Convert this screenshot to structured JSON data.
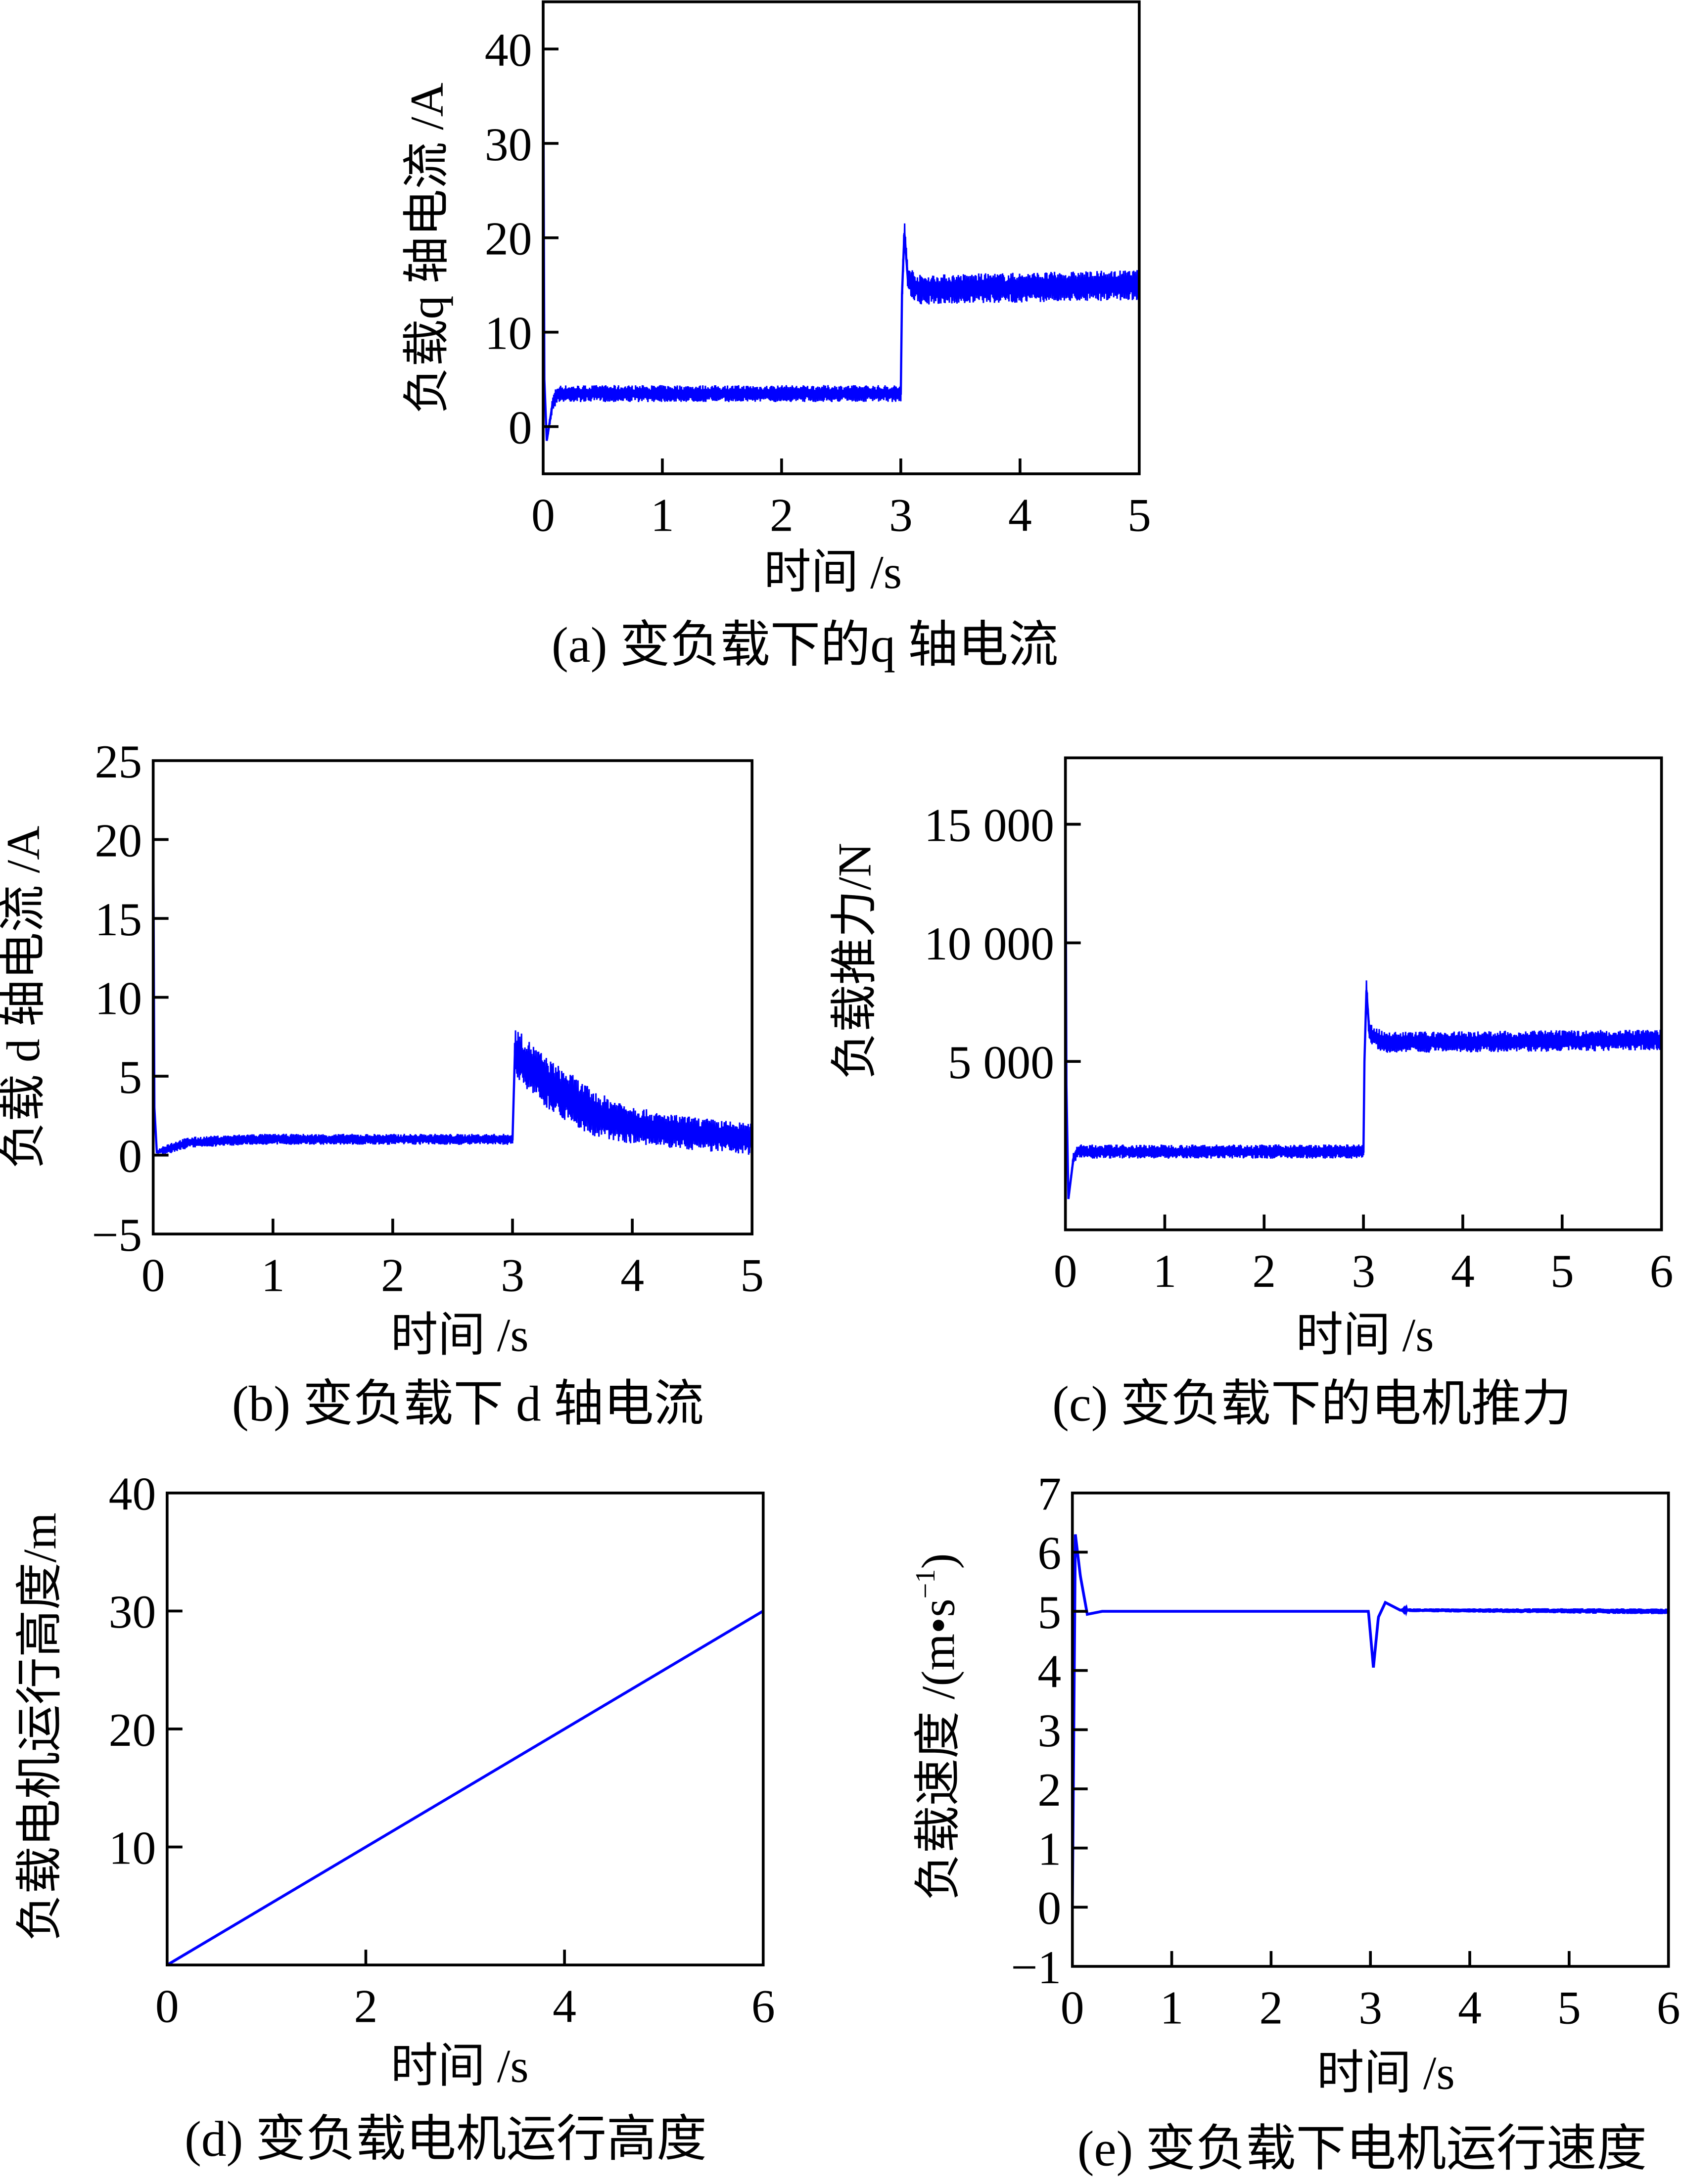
{
  "colors": {
    "series": "#0000ff",
    "axis": "#000000"
  },
  "chart_data": [
    {
      "type": "line",
      "id": "a",
      "caption": "(a) 变负载下的q 轴电流",
      "xlabel": "时间 /s",
      "ylabel": "负载q 轴电流 /A",
      "xlim": [
        0,
        5
      ],
      "ylim": [
        -5,
        45
      ],
      "xticks": [
        0,
        1,
        2,
        3,
        4,
        5
      ],
      "xtick_labels": [
        "0",
        "1",
        "2",
        "3",
        "4",
        "5"
      ],
      "yticks": [
        0,
        10,
        20,
        30,
        40
      ],
      "ytick_labels": [
        "0",
        "10",
        "20",
        "30",
        "40"
      ],
      "grid": false,
      "series": [
        {
          "name": "q-axis current",
          "points": [
            [
              0,
              43
            ],
            [
              0.01,
              5
            ],
            [
              0.03,
              -1.5
            ],
            [
              0.08,
              2.5
            ],
            [
              0.12,
              3.5
            ],
            [
              2.98,
              3.5
            ],
            [
              3.0,
              3.5
            ],
            [
              3.01,
              14
            ],
            [
              3.03,
              20.5
            ],
            [
              3.06,
              15.5
            ],
            [
              3.15,
              14.5
            ],
            [
              5,
              15
            ]
          ],
          "noise": [
            [
              0,
              0
            ],
            [
              0.1,
              0.9
            ],
            [
              3.0,
              0.9
            ],
            [
              3.02,
              1.6
            ],
            [
              5,
              1.6
            ]
          ]
        }
      ]
    },
    {
      "type": "line",
      "id": "b",
      "caption": "(b) 变负载下 d 轴电流",
      "xlabel": "时间 /s",
      "ylabel": "负载 d 轴电流 /A",
      "xlim": [
        0,
        5
      ],
      "ylim": [
        -5,
        25
      ],
      "xticks": [
        0,
        1,
        2,
        3,
        4,
        5
      ],
      "xtick_labels": [
        "0",
        "1",
        "2",
        "3",
        "4",
        "5"
      ],
      "yticks": [
        -5,
        0,
        5,
        10,
        15,
        20,
        25
      ],
      "ytick_labels": [
        "−5",
        "0",
        "5",
        "10",
        "15",
        "20",
        "25"
      ],
      "grid": false,
      "series": [
        {
          "name": "d-axis current",
          "points": [
            [
              0,
              22
            ],
            [
              0.01,
              3
            ],
            [
              0.03,
              0.2
            ],
            [
              0.3,
              0.8
            ],
            [
              0.8,
              1.0
            ],
            [
              3.0,
              1.0
            ],
            [
              3.02,
              6.5
            ],
            [
              3.3,
              4.5
            ],
            [
              3.7,
              2.5
            ],
            [
              4.2,
              1.6
            ],
            [
              5,
              1.0
            ]
          ],
          "noise": [
            [
              0,
              0
            ],
            [
              0.1,
              0.35
            ],
            [
              3.0,
              0.35
            ],
            [
              3.02,
              1.6
            ],
            [
              3.5,
              1.6
            ],
            [
              4.2,
              1.1
            ],
            [
              5,
              1.0
            ]
          ]
        }
      ]
    },
    {
      "type": "line",
      "id": "c",
      "caption": "(c) 变负载下的电机推力",
      "xlabel": "时间 /s",
      "ylabel": "负载推力/N",
      "xlim": [
        0,
        6
      ],
      "ylim": [
        -2100,
        17800
      ],
      "xticks": [
        0,
        1,
        2,
        3,
        4,
        5,
        6
      ],
      "xtick_labels": [
        "0",
        "1",
        "2",
        "3",
        "4",
        "5",
        "6"
      ],
      "yticks": [
        5000,
        10000,
        15000
      ],
      "ytick_labels": [
        "5 000",
        "10 000",
        "15 000"
      ],
      "grid": false,
      "series": [
        {
          "name": "thrust",
          "points": [
            [
              0,
              17000
            ],
            [
              0.01,
              4000
            ],
            [
              0.03,
              -800
            ],
            [
              0.08,
              900
            ],
            [
              0.12,
              1200
            ],
            [
              2.98,
              1200
            ],
            [
              3.0,
              1200
            ],
            [
              3.01,
              5000
            ],
            [
              3.03,
              8000
            ],
            [
              3.06,
              6200
            ],
            [
              3.2,
              5800
            ],
            [
              6,
              5900
            ]
          ],
          "noise": [
            [
              0,
              0
            ],
            [
              0.1,
              300
            ],
            [
              3.0,
              300
            ],
            [
              3.02,
              450
            ],
            [
              6,
              450
            ]
          ]
        }
      ]
    },
    {
      "type": "line",
      "id": "d",
      "caption": "(d) 变负载电机运行高度",
      "xlabel": "时间 /s",
      "ylabel": "负载电机运行高度/m",
      "xlim": [
        0,
        6
      ],
      "ylim": [
        0,
        40
      ],
      "xticks": [
        0,
        2,
        4,
        6
      ],
      "xtick_labels": [
        "0",
        "2",
        "4",
        "6"
      ],
      "yticks": [
        10,
        20,
        30,
        40
      ],
      "ytick_labels": [
        "10",
        "20",
        "30",
        "40"
      ],
      "grid": false,
      "series": [
        {
          "name": "height",
          "points": [
            [
              0,
              0
            ],
            [
              6,
              30
            ]
          ],
          "noise": [
            [
              0,
              0
            ],
            [
              6,
              0
            ]
          ]
        }
      ]
    },
    {
      "type": "line",
      "id": "e",
      "caption": "(e) 变负载下电机运行速度",
      "xlabel": "时间 /s",
      "ylabel": "负载速度 /(m•s",
      "ylabel_sup": "−1",
      "ylabel_end": ")",
      "xlim": [
        0,
        6
      ],
      "ylim": [
        -1,
        7
      ],
      "xticks": [
        0,
        1,
        2,
        3,
        4,
        5,
        6
      ],
      "xtick_labels": [
        "0",
        "1",
        "2",
        "3",
        "4",
        "5",
        "6"
      ],
      "yticks": [
        -1,
        0,
        1,
        2,
        3,
        4,
        5,
        6,
        7
      ],
      "ytick_labels": [
        "−1",
        "0",
        "1",
        "2",
        "3",
        "4",
        "5",
        "6",
        "7"
      ],
      "grid": false,
      "series": [
        {
          "name": "speed",
          "points": [
            [
              0,
              0
            ],
            [
              0.03,
              6.3
            ],
            [
              0.08,
              5.6
            ],
            [
              0.15,
              4.95
            ],
            [
              0.3,
              5.0
            ],
            [
              2.98,
              5.0
            ],
            [
              3.03,
              4.05
            ],
            [
              3.08,
              4.9
            ],
            [
              3.15,
              5.15
            ],
            [
              3.3,
              5.02
            ],
            [
              6,
              5.0
            ]
          ],
          "noise": [
            [
              0,
              0
            ],
            [
              3.3,
              0
            ],
            [
              3.4,
              0.03
            ],
            [
              6,
              0.05
            ]
          ]
        }
      ]
    }
  ]
}
